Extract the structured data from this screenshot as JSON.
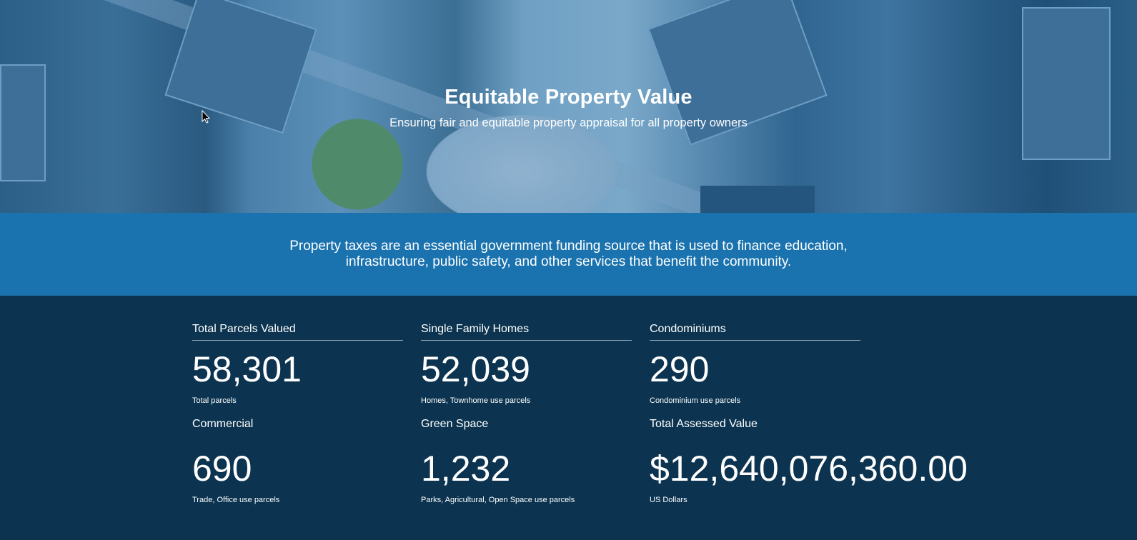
{
  "hero": {
    "title": "Equitable Property Value",
    "subtitle": "Ensuring fair and equitable property appraisal for all property owners"
  },
  "intro": {
    "text": "Property taxes are an essential government funding source that is used to finance education, infrastructure, public safety, and other services that benefit the community."
  },
  "stats": [
    {
      "title": "Total Parcels Valued",
      "value": "58,301",
      "description": "Total parcels"
    },
    {
      "title": "Single Family Homes",
      "value": "52,039",
      "description": "Homes, Townhome use parcels"
    },
    {
      "title": "Condominiums",
      "value": "290",
      "description": "Condominium use parcels"
    },
    {
      "title": "Commercial",
      "value": "690",
      "description": "Trade, Office use parcels"
    },
    {
      "title": "Green Space",
      "value": "1,232",
      "description": "Parks, Agricultural, Open Space use parcels"
    },
    {
      "title": "Total Assessed Value",
      "value": "$12,640,076,360.00",
      "description": "US Dollars"
    }
  ],
  "colors": {
    "band": "#1a73ae",
    "stats_background": "#0c3450"
  }
}
